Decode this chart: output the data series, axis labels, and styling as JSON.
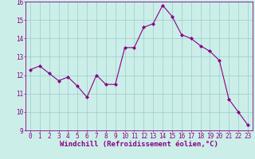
{
  "x": [
    0,
    1,
    2,
    3,
    4,
    5,
    6,
    7,
    8,
    9,
    10,
    11,
    12,
    13,
    14,
    15,
    16,
    17,
    18,
    19,
    20,
    21,
    22,
    23
  ],
  "y": [
    12.3,
    12.5,
    12.1,
    11.7,
    11.9,
    11.4,
    10.8,
    12.0,
    11.5,
    11.5,
    13.5,
    13.5,
    14.6,
    14.8,
    15.8,
    15.2,
    14.2,
    14.0,
    13.6,
    13.3,
    12.8,
    10.7,
    10.0,
    9.3
  ],
  "xlabel": "Windchill (Refroidissement éolien,°C)",
  "bg_color": "#cceee8",
  "line_color": "#880088",
  "marker_color": "#880088",
  "grid_color": "#99cccc",
  "xlim": [
    -0.5,
    23.5
  ],
  "ylim": [
    9,
    16
  ],
  "xticks": [
    0,
    1,
    2,
    3,
    4,
    5,
    6,
    7,
    8,
    9,
    10,
    11,
    12,
    13,
    14,
    15,
    16,
    17,
    18,
    19,
    20,
    21,
    22,
    23
  ],
  "yticks": [
    9,
    10,
    11,
    12,
    13,
    14,
    15,
    16
  ],
  "xlabel_fontsize": 6.5,
  "tick_fontsize": 5.5,
  "spine_color": "#880088",
  "xlabel_color": "#880088",
  "tick_color": "#880088"
}
